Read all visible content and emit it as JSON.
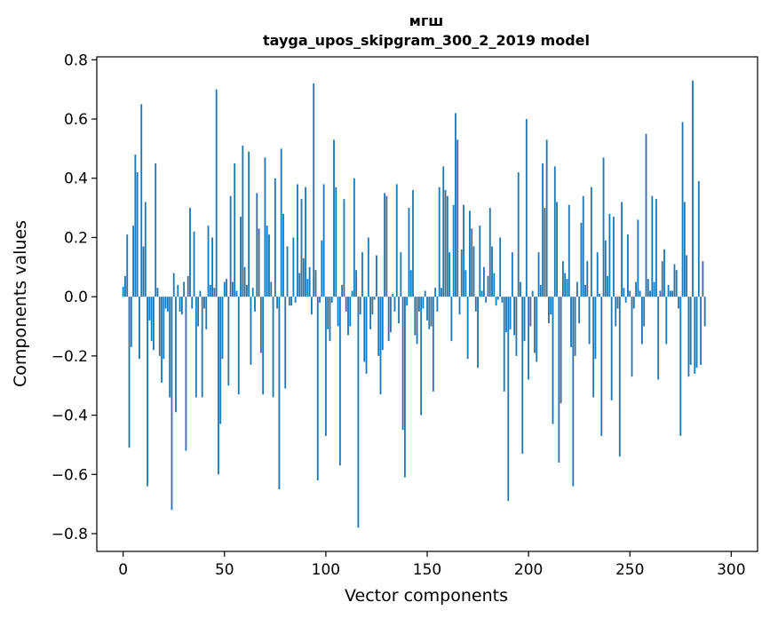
{
  "chart_data": {
    "type": "bar",
    "title": "мгш",
    "subtitle": "tayga_upos_skipgram_300_2_2019 model",
    "xlabel": "Vector components",
    "ylabel": "Components values",
    "xlim": [
      -13,
      313
    ],
    "ylim": [
      -0.86,
      0.81
    ],
    "xticks": [
      0,
      50,
      100,
      150,
      200,
      250,
      300
    ],
    "yticks": [
      -0.8,
      -0.6,
      -0.4,
      -0.2,
      0.0,
      0.2,
      0.4,
      0.6,
      0.8
    ],
    "ytick_labels": [
      "−0.8",
      "−0.6",
      "−0.4",
      "−0.2",
      "0.0",
      "0.2",
      "0.4",
      "0.6",
      "0.8"
    ],
    "grid": false,
    "bar_color": "#1f77b4",
    "values": [
      0.034,
      0.07,
      0.21,
      -0.51,
      -0.17,
      0.24,
      0.48,
      0.42,
      -0.21,
      0.65,
      0.17,
      0.32,
      -0.64,
      -0.08,
      -0.15,
      -0.18,
      0.45,
      0.03,
      -0.2,
      -0.29,
      -0.21,
      -0.04,
      -0.05,
      -0.34,
      -0.72,
      0.08,
      -0.39,
      0.04,
      -0.05,
      -0.06,
      0.05,
      -0.52,
      0.07,
      0.3,
      -0.04,
      0.22,
      -0.34,
      -0.1,
      0.02,
      -0.34,
      -0.04,
      -0.11,
      0.24,
      0.04,
      0.2,
      0.03,
      0.7,
      -0.6,
      -0.43,
      -0.21,
      0.05,
      0.06,
      -0.3,
      0.34,
      0.05,
      0.45,
      0.02,
      -0.33,
      0.27,
      0.51,
      0.1,
      0.04,
      0.49,
      -0.23,
      0.03,
      -0.05,
      0.35,
      0.23,
      -0.19,
      -0.33,
      0.47,
      0.24,
      0.21,
      0.05,
      -0.34,
      0.4,
      -0.04,
      -0.65,
      0.5,
      0.28,
      -0.31,
      0.17,
      -0.03,
      -0.03,
      0.2,
      -0.02,
      0.38,
      0.08,
      0.33,
      0.13,
      0.37,
      0.06,
      0.1,
      -0.06,
      0.72,
      0.09,
      -0.62,
      -0.02,
      0.19,
      0.38,
      -0.47,
      -0.11,
      -0.15,
      -0.02,
      0.53,
      0.37,
      -0.1,
      -0.57,
      0.04,
      0.33,
      -0.05,
      -0.13,
      -0.1,
      0.02,
      0.4,
      0.09,
      -0.78,
      -0.06,
      0.15,
      -0.22,
      -0.26,
      0.2,
      -0.11,
      -0.06,
      -0.01,
      0.14,
      -0.2,
      -0.33,
      -0.18,
      0.35,
      0.34,
      -0.15,
      -0.12,
      0.01,
      -0.05,
      0.38,
      -0.09,
      0.15,
      -0.45,
      -0.61,
      -0.03,
      0.3,
      0.09,
      0.36,
      -0.13,
      -0.16,
      -0.05,
      -0.4,
      -0.04,
      0.02,
      -0.08,
      -0.11,
      -0.1,
      -0.32,
      0.03,
      -0.05,
      0.37,
      0.03,
      0.44,
      0.36,
      0.34,
      0.15,
      -0.15,
      0.31,
      0.62,
      0.53,
      -0.06,
      0.16,
      0.31,
      0.09,
      -0.21,
      0.29,
      0.23,
      0.17,
      -0.05,
      -0.24,
      0.24,
      0.02,
      0.1,
      -0.02,
      0.07,
      0.3,
      0.17,
      0.08,
      -0.03,
      -0.01,
      0.2,
      -0.02,
      -0.32,
      -0.12,
      -0.69,
      -0.11,
      0.15,
      -0.13,
      -0.2,
      0.42,
      0.05,
      -0.53,
      -0.15,
      0.6,
      -0.28,
      -0.1,
      0.02,
      -0.19,
      -0.22,
      0.15,
      0.04,
      0.45,
      0.3,
      0.53,
      -0.09,
      -0.06,
      -0.43,
      0.44,
      0.32,
      -0.56,
      -0.36,
      0.12,
      0.08,
      0.06,
      0.31,
      -0.17,
      -0.64,
      -0.2,
      0.05,
      -0.09,
      0.25,
      0.34,
      0.04,
      0.12,
      -0.16,
      0.37,
      -0.34,
      -0.21,
      0.15,
      0.01,
      -0.47,
      0.47,
      0.19,
      0.07,
      0.28,
      -0.35,
      0.27,
      -0.1,
      -0.04,
      -0.54,
      0.32,
      0.03,
      -0.02,
      0.21,
      0.02,
      -0.27,
      -0.04,
      0.05,
      0.26,
      0.02,
      -0.16,
      -0.1,
      0.55,
      0.06,
      0.02,
      0.34,
      0.05,
      0.33,
      -0.28,
      0.02,
      0.12,
      0.16,
      -0.16,
      0.04,
      0.02,
      0.02,
      0.11,
      0.09,
      -0.04,
      -0.47,
      0.59,
      0.32,
      0.14,
      -0.27,
      -0.23,
      0.73,
      -0.26,
      -0.24,
      0.39,
      -0.23,
      0.12,
      -0.1
    ]
  }
}
